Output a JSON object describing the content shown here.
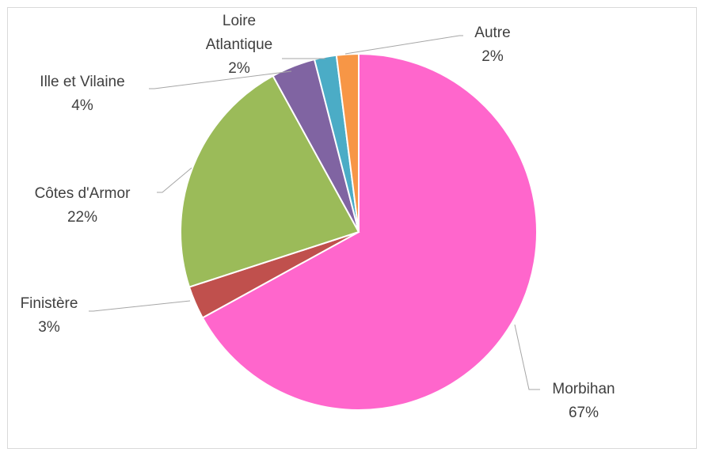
{
  "chart_data": {
    "type": "pie",
    "categories": [
      "Morbihan",
      "Finistère",
      "Côtes d'Armor",
      "Ille et Vilaine",
      "Loire Atlantique",
      "Autre"
    ],
    "values": [
      67,
      3,
      22,
      4,
      2,
      2
    ],
    "value_labels": [
      "67%",
      "3%",
      "22%",
      "4%",
      "2%",
      "2%"
    ],
    "colors": [
      "#ff66cc",
      "#c0504d",
      "#9bbb59",
      "#8064a2",
      "#4bacc6",
      "#f79646"
    ]
  }
}
